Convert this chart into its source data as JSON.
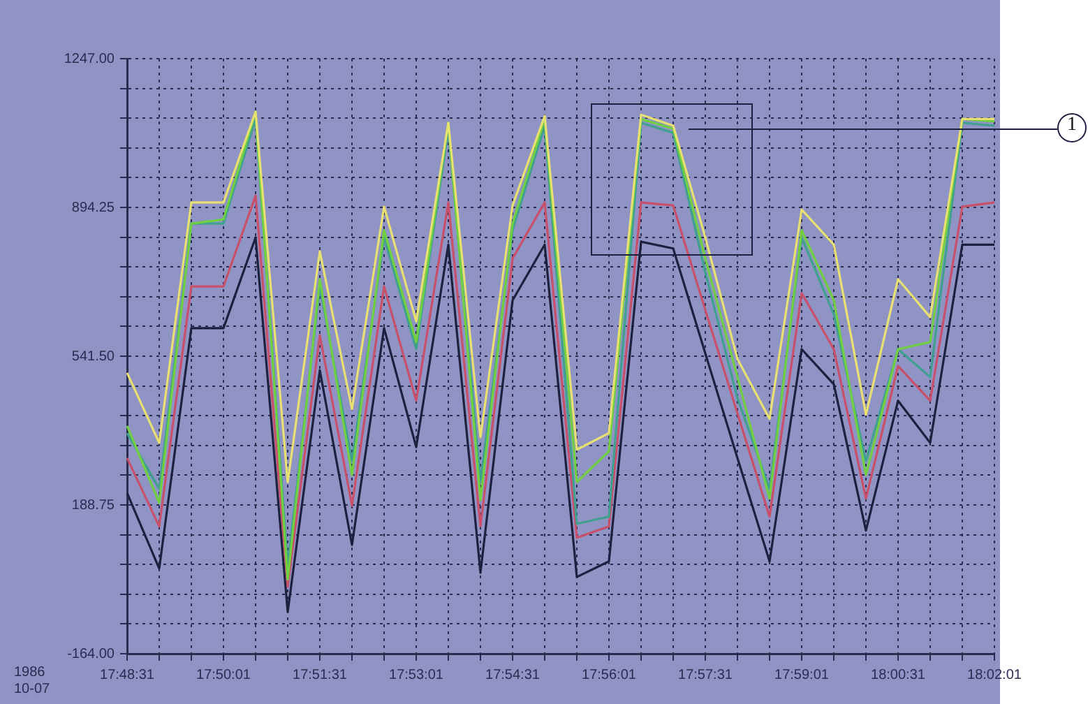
{
  "chart_data": {
    "type": "line",
    "categories": [
      "17:48:31",
      null,
      null,
      "17:50:01",
      null,
      null,
      "17:51:31",
      null,
      null,
      "17:53:01",
      null,
      null,
      "17:54:31",
      null,
      null,
      "17:56:01",
      null,
      null,
      "17:57:31",
      null,
      null,
      "17:59:01",
      null,
      null,
      "18:00:31",
      null,
      null,
      "18:02:01"
    ],
    "series": [
      {
        "color": "#1e2040",
        "values": [
          217,
          38,
          608,
          608,
          823,
          -65,
          508,
          94,
          608,
          326,
          806,
          28,
          674,
          806,
          18,
          55,
          813,
          797,
          548,
          300,
          55,
          558,
          475,
          128,
          436,
          336,
          806,
          806
        ]
      },
      {
        "color": "#c8506a",
        "values": [
          300,
          138,
          707,
          707,
          922,
          -5,
          591,
          187,
          707,
          436,
          906,
          138,
          773,
          906,
          111,
          138,
          906,
          899,
          651,
          406,
          161,
          691,
          558,
          204,
          518,
          436,
          896,
          906
        ]
      },
      {
        "color": "#40a090",
        "values": [
          359,
          227,
          856,
          856,
          1104,
          45,
          707,
          293,
          823,
          558,
          1081,
          243,
          840,
          1088,
          144,
          161,
          1095,
          1071,
          740,
          442,
          227,
          823,
          641,
          293,
          558,
          492,
          1095,
          1088
        ]
      },
      {
        "color": "#70d040",
        "values": [
          376,
          194,
          856,
          866,
          1121,
          12,
          724,
          260,
          840,
          575,
          1095,
          200,
          856,
          1104,
          243,
          316,
          1104,
          1081,
          773,
          492,
          204,
          840,
          674,
          260,
          558,
          575,
          1104,
          1098
        ]
      },
      {
        "color": "#e8e070",
        "values": [
          502,
          336,
          906,
          906,
          1121,
          243,
          790,
          416,
          896,
          624,
          1095,
          349,
          899,
          1111,
          320,
          359,
          1114,
          1088,
          823,
          535,
          393,
          889,
          806,
          403,
          724,
          634,
          1104,
          1104
        ]
      }
    ],
    "ylim": [
      -164,
      1247
    ],
    "yticks": [
      {
        "value": 1247,
        "label": "1247.00"
      },
      {
        "value": 1176.45,
        "label": null
      },
      {
        "value": 1105.9,
        "label": null
      },
      {
        "value": 1035.35,
        "label": null
      },
      {
        "value": 964.8,
        "label": null
      },
      {
        "value": 894.25,
        "label": "894.25"
      },
      {
        "value": 823.7,
        "label": null
      },
      {
        "value": 753.15,
        "label": null
      },
      {
        "value": 682.6,
        "label": null
      },
      {
        "value": 612.05,
        "label": null
      },
      {
        "value": 541.5,
        "label": "541.50"
      },
      {
        "value": 470.95,
        "label": null
      },
      {
        "value": 400.4,
        "label": null
      },
      {
        "value": 329.85,
        "label": null
      },
      {
        "value": 259.3,
        "label": null
      },
      {
        "value": 188.75,
        "label": "188.75"
      },
      {
        "value": 118.2,
        "label": null
      },
      {
        "value": 47.65,
        "label": null
      },
      {
        "value": -22.9,
        "label": null
      },
      {
        "value": -93.45,
        "label": null
      },
      {
        "value": -164,
        "label": "-164.00"
      }
    ],
    "grid": true,
    "legend": false,
    "marker": "none",
    "line_style": "solid",
    "annotations": [
      "1986 10-07",
      "1"
    ]
  }
}
